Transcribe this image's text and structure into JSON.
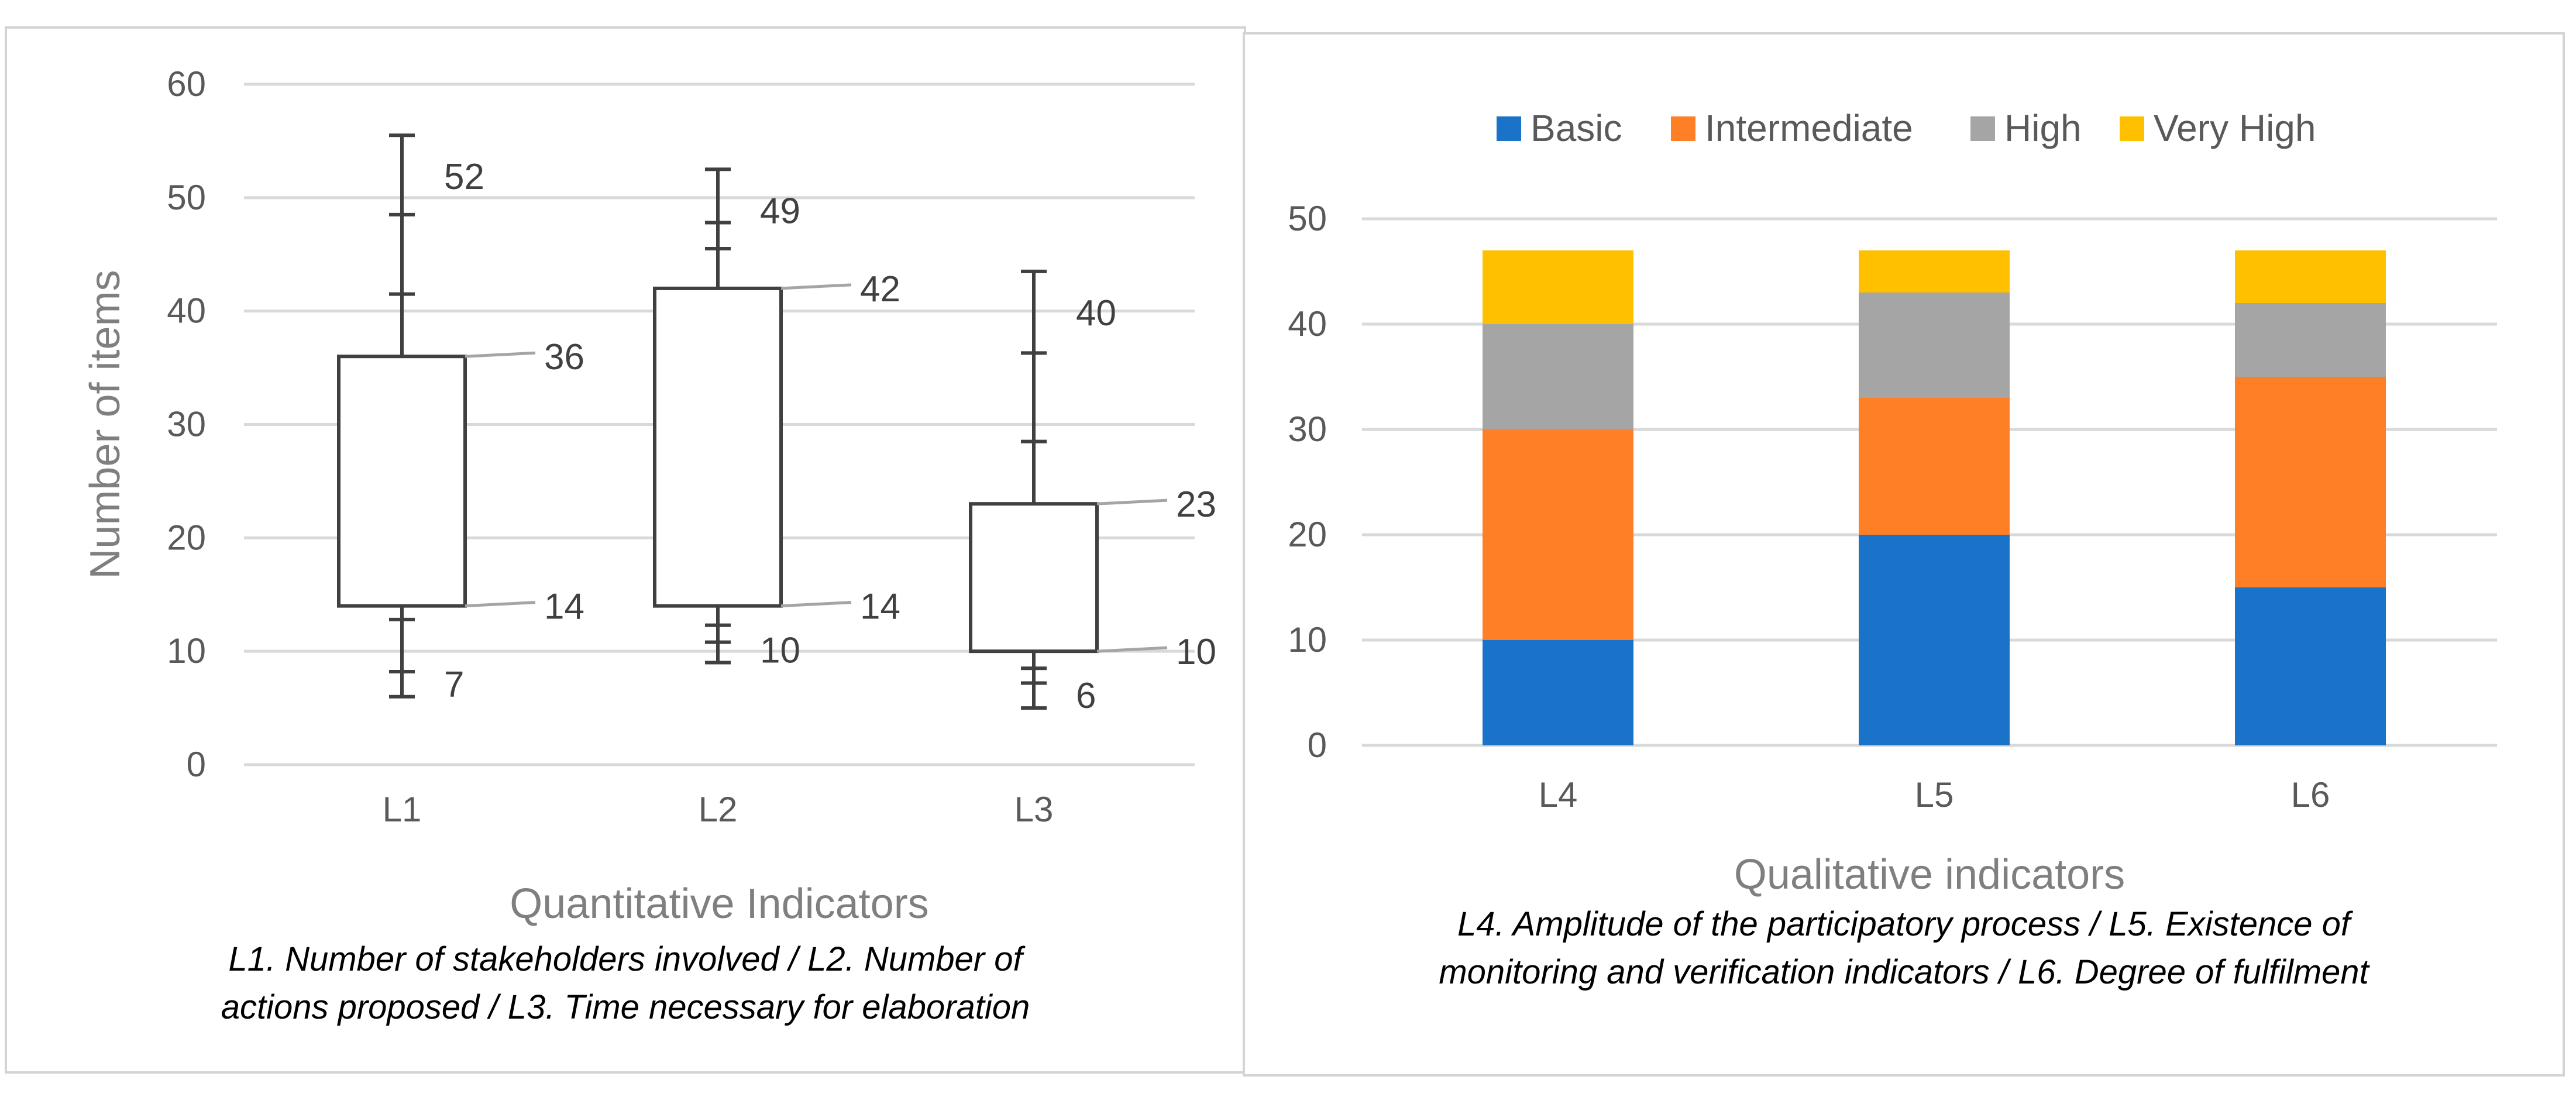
{
  "chart_data": [
    {
      "type": "box",
      "categories": [
        "L1",
        "L2",
        "L3"
      ],
      "ylabel": "Number of items",
      "xlabel": "Quantitative Indicators",
      "caption_lines": [
        "L1. Number of stakeholders involved / L2. Number of",
        "actions proposed / L3. Time necessary for elaboration"
      ],
      "ylim": [
        0,
        60
      ],
      "yticks": [
        0,
        10,
        20,
        30,
        40,
        50,
        60
      ],
      "grid": true,
      "boxes": [
        {
          "category": "L1",
          "lower_quartile": 14,
          "upper_quartile": 36,
          "whisker_top": 55.5,
          "whisker_bottom": 6,
          "marks": [
            48.5,
            41.5,
            12.8,
            8.2
          ],
          "labels": [
            "52",
            "36",
            "14",
            "7"
          ]
        },
        {
          "category": "L2",
          "lower_quartile": 14,
          "upper_quartile": 42,
          "whisker_top": 52.5,
          "whisker_bottom": 9,
          "marks": [
            47.8,
            45.5,
            12.3,
            10.8
          ],
          "labels": [
            "49",
            "42",
            "14",
            "10"
          ]
        },
        {
          "category": "L3",
          "lower_quartile": 10,
          "upper_quartile": 23,
          "whisker_top": 43.5,
          "whisker_bottom": 5,
          "marks": [
            36.3,
            28.5,
            8.5,
            7.2
          ],
          "labels": [
            "40",
            "23",
            "10",
            "6"
          ]
        }
      ]
    },
    {
      "type": "bar",
      "stacked": true,
      "categories": [
        "L4",
        "L5",
        "L6"
      ],
      "xlabel": "Qualitative indicators",
      "caption_lines": [
        "L4. Amplitude of the participatory process / L5. Existence of",
        "monitoring and verification indicators / L6. Degree of fulfilment"
      ],
      "ylim": [
        0,
        50
      ],
      "yticks": [
        0,
        10,
        20,
        30,
        40,
        50
      ],
      "grid": true,
      "legend_position": "top",
      "series": [
        {
          "name": "Basic",
          "color": "#1a73c8",
          "values": [
            10,
            20,
            15
          ]
        },
        {
          "name": "Intermediate",
          "color": "#ff7f27",
          "values": [
            20,
            13,
            20
          ]
        },
        {
          "name": "High",
          "color": "#a5a5a5",
          "values": [
            10,
            10,
            7
          ]
        },
        {
          "name": "Very High",
          "color": "#ffc000",
          "values": [
            7,
            4,
            5
          ]
        }
      ]
    }
  ]
}
